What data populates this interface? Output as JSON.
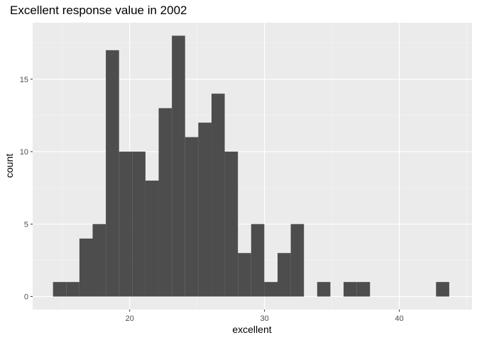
{
  "chart_data": {
    "type": "bar",
    "title": "Excellent response value in 2002",
    "xlabel": "excellent",
    "ylabel": "count",
    "xlim": [
      12.8,
      45.4
    ],
    "ylim": [
      -0.9,
      18.9
    ],
    "x_ticks": [
      20,
      30,
      40
    ],
    "y_ticks": [
      0,
      5,
      10,
      15
    ],
    "x_minor": [
      15,
      25,
      35,
      45
    ],
    "y_minor": [
      2.5,
      7.5,
      12.5,
      17.5
    ],
    "grid": true,
    "legend": "none",
    "bin_width": 0.98,
    "bins": [
      {
        "x": 14.8,
        "count": 1
      },
      {
        "x": 15.78,
        "count": 1
      },
      {
        "x": 16.76,
        "count": 4
      },
      {
        "x": 17.74,
        "count": 5
      },
      {
        "x": 18.72,
        "count": 17
      },
      {
        "x": 19.7,
        "count": 10
      },
      {
        "x": 20.68,
        "count": 10
      },
      {
        "x": 21.66,
        "count": 8
      },
      {
        "x": 22.64,
        "count": 13
      },
      {
        "x": 23.62,
        "count": 18
      },
      {
        "x": 24.6,
        "count": 11
      },
      {
        "x": 25.58,
        "count": 12
      },
      {
        "x": 26.56,
        "count": 14
      },
      {
        "x": 27.54,
        "count": 10
      },
      {
        "x": 28.52,
        "count": 3
      },
      {
        "x": 29.5,
        "count": 5
      },
      {
        "x": 30.48,
        "count": 1
      },
      {
        "x": 31.46,
        "count": 3
      },
      {
        "x": 32.44,
        "count": 5
      },
      {
        "x": 33.42,
        "count": 0
      },
      {
        "x": 34.4,
        "count": 1
      },
      {
        "x": 35.38,
        "count": 0
      },
      {
        "x": 36.36,
        "count": 1
      },
      {
        "x": 37.34,
        "count": 1
      },
      {
        "x": 38.32,
        "count": 0
      },
      {
        "x": 39.3,
        "count": 0
      },
      {
        "x": 40.28,
        "count": 0
      },
      {
        "x": 41.26,
        "count": 0
      },
      {
        "x": 42.24,
        "count": 0
      },
      {
        "x": 43.22,
        "count": 1
      }
    ],
    "colors": {
      "bar": "#4d4d4d",
      "panel": "#ebebeb",
      "grid_major": "#ffffff",
      "grid_minor": "#f5f5f5",
      "tick": "#333333",
      "tick_label": "#4d4d4d"
    }
  }
}
